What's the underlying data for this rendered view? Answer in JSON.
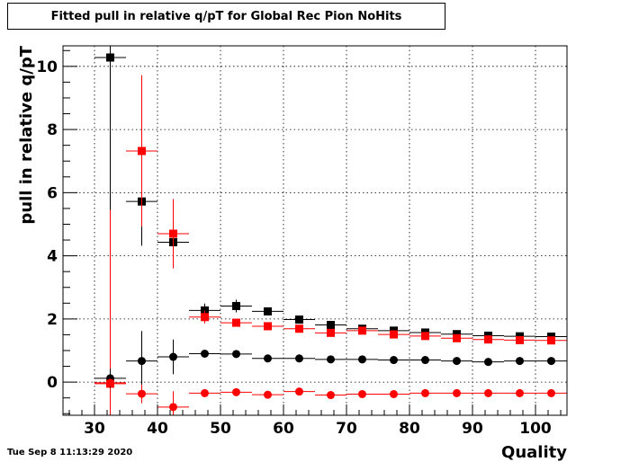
{
  "title": "Fitted pull in relative q/pT for Global Rec Pion NoHits",
  "timestamp": "Tue Sep  8 11:13:29 2020",
  "colors": {
    "black_series": "#000000",
    "red_series": "#ff0000"
  },
  "chart_data": {
    "type": "scatter",
    "xlabel": "Quality",
    "ylabel": "pull in relative q/pT",
    "xlim": [
      25,
      105
    ],
    "ylim": [
      -1.05,
      10.65
    ],
    "xticks": [
      30,
      40,
      50,
      60,
      70,
      80,
      90,
      100
    ],
    "yticks": [
      0,
      2,
      4,
      6,
      8,
      10
    ],
    "grid": true,
    "xerr": 2.5,
    "series": [
      {
        "color": "#000000",
        "marker": "square",
        "points": [
          {
            "x": 32.5,
            "y": 10.28,
            "yerr": 11.0
          },
          {
            "x": 37.5,
            "y": 5.72,
            "yerr": 1.4
          },
          {
            "x": 42.5,
            "y": 4.43,
            "yerr": 0.2
          },
          {
            "x": 47.5,
            "y": 2.27,
            "yerr": 0.22
          },
          {
            "x": 52.5,
            "y": 2.41,
            "yerr": 0.2
          },
          {
            "x": 57.5,
            "y": 2.24,
            "yerr": 0.1
          },
          {
            "x": 62.5,
            "y": 1.98,
            "yerr": 0.07
          },
          {
            "x": 67.5,
            "y": 1.81,
            "yerr": 0.07
          },
          {
            "x": 72.5,
            "y": 1.69,
            "yerr": 0.05
          },
          {
            "x": 77.5,
            "y": 1.63,
            "yerr": 0.04
          },
          {
            "x": 82.5,
            "y": 1.57,
            "yerr": 0.04
          },
          {
            "x": 87.5,
            "y": 1.52,
            "yerr": 0.04
          },
          {
            "x": 92.5,
            "y": 1.47,
            "yerr": 0.04
          },
          {
            "x": 97.5,
            "y": 1.45,
            "yerr": 0.03
          },
          {
            "x": 102.5,
            "y": 1.44,
            "yerr": 0.03
          }
        ]
      },
      {
        "color": "#ff0000",
        "marker": "square",
        "points": [
          {
            "x": 32.5,
            "y": -0.05,
            "yerr": 5.5
          },
          {
            "x": 37.5,
            "y": 7.32,
            "yerr": 2.4
          },
          {
            "x": 42.5,
            "y": 4.7,
            "yerr": 1.1
          },
          {
            "x": 47.5,
            "y": 2.06,
            "yerr": 0.2
          },
          {
            "x": 52.5,
            "y": 1.88,
            "yerr": 0.1
          },
          {
            "x": 57.5,
            "y": 1.77,
            "yerr": 0.07
          },
          {
            "x": 62.5,
            "y": 1.69,
            "yerr": 0.06
          },
          {
            "x": 67.5,
            "y": 1.56,
            "yerr": 0.05
          },
          {
            "x": 72.5,
            "y": 1.63,
            "yerr": 0.04
          },
          {
            "x": 77.5,
            "y": 1.51,
            "yerr": 0.04
          },
          {
            "x": 82.5,
            "y": 1.46,
            "yerr": 0.03
          },
          {
            "x": 87.5,
            "y": 1.39,
            "yerr": 0.03
          },
          {
            "x": 92.5,
            "y": 1.35,
            "yerr": 0.03
          },
          {
            "x": 97.5,
            "y": 1.33,
            "yerr": 0.03
          },
          {
            "x": 102.5,
            "y": 1.32,
            "yerr": 0.03
          }
        ]
      },
      {
        "color": "#000000",
        "marker": "circle",
        "points": [
          {
            "x": 32.5,
            "y": 0.12,
            "yerr": 0.3
          },
          {
            "x": 37.5,
            "y": 0.67,
            "yerr": 0.95
          },
          {
            "x": 42.5,
            "y": 0.8,
            "yerr": 0.55
          },
          {
            "x": 47.5,
            "y": 0.9,
            "yerr": 0.1
          },
          {
            "x": 52.5,
            "y": 0.89,
            "yerr": 0.06
          },
          {
            "x": 57.5,
            "y": 0.75,
            "yerr": 0.04
          },
          {
            "x": 62.5,
            "y": 0.75,
            "yerr": 0.03
          },
          {
            "x": 67.5,
            "y": 0.72,
            "yerr": 0.03
          },
          {
            "x": 72.5,
            "y": 0.72,
            "yerr": 0.03
          },
          {
            "x": 77.5,
            "y": 0.7,
            "yerr": 0.02
          },
          {
            "x": 82.5,
            "y": 0.7,
            "yerr": 0.02
          },
          {
            "x": 87.5,
            "y": 0.67,
            "yerr": 0.02
          },
          {
            "x": 92.5,
            "y": 0.64,
            "yerr": 0.02
          },
          {
            "x": 97.5,
            "y": 0.67,
            "yerr": 0.02
          },
          {
            "x": 102.5,
            "y": 0.67,
            "yerr": 0.02
          }
        ]
      },
      {
        "color": "#ff0000",
        "marker": "circle",
        "points": [
          {
            "x": 32.5,
            "y": -0.02,
            "yerr": 0.1
          },
          {
            "x": 37.5,
            "y": -0.37,
            "yerr": 0.3
          },
          {
            "x": 42.5,
            "y": -0.79,
            "yerr": 0.5
          },
          {
            "x": 47.5,
            "y": -0.35,
            "yerr": 0.07
          },
          {
            "x": 52.5,
            "y": -0.32,
            "yerr": 0.05
          },
          {
            "x": 57.5,
            "y": -0.4,
            "yerr": 0.04
          },
          {
            "x": 62.5,
            "y": -0.3,
            "yerr": 0.03
          },
          {
            "x": 67.5,
            "y": -0.41,
            "yerr": 0.03
          },
          {
            "x": 72.5,
            "y": -0.38,
            "yerr": 0.02
          },
          {
            "x": 77.5,
            "y": -0.38,
            "yerr": 0.02
          },
          {
            "x": 82.5,
            "y": -0.35,
            "yerr": 0.02
          },
          {
            "x": 87.5,
            "y": -0.35,
            "yerr": 0.02
          },
          {
            "x": 92.5,
            "y": -0.35,
            "yerr": 0.02
          },
          {
            "x": 97.5,
            "y": -0.35,
            "yerr": 0.02
          },
          {
            "x": 102.5,
            "y": -0.35,
            "yerr": 0.02
          }
        ]
      }
    ]
  }
}
